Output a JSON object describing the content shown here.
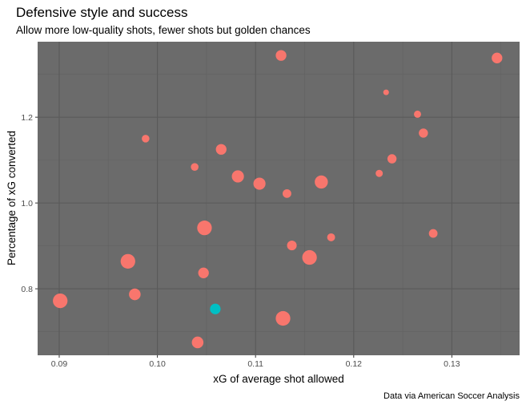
{
  "chart_data": {
    "type": "scatter",
    "title": "Defensive style and success",
    "subtitle": "Allow more low-quality shots, fewer shots but golden chances",
    "xlabel": "xG of average shot allowed",
    "ylabel": "Percentage of xG converted",
    "caption": "Data via American Soccer Analysis",
    "xlim": [
      0.0878,
      0.1369
    ],
    "ylim": [
      0.645,
      1.376
    ],
    "xticks": [
      0.09,
      0.1,
      0.11,
      0.12,
      0.13
    ],
    "xtick_labels": [
      "0.09",
      "0.10",
      "0.11",
      "0.12",
      "0.13"
    ],
    "yticks": [
      0.8,
      1.0,
      1.2
    ],
    "ytick_labels": [
      "0.8",
      "1.0",
      "1.2"
    ],
    "grid": true,
    "colors": {
      "default": "#F8766D",
      "highlight": "#00BFC4",
      "panel": "#6b6b6b"
    },
    "points": [
      {
        "x": 0.1126,
        "y": 1.344,
        "size": 3,
        "group": "default"
      },
      {
        "x": 0.1346,
        "y": 1.338,
        "size": 3,
        "group": "default"
      },
      {
        "x": 0.1233,
        "y": 1.258,
        "size": 1,
        "group": "default"
      },
      {
        "x": 0.1265,
        "y": 1.207,
        "size": 1.6,
        "group": "default"
      },
      {
        "x": 0.1271,
        "y": 1.163,
        "size": 2.4,
        "group": "default"
      },
      {
        "x": 0.0988,
        "y": 1.15,
        "size": 1.8,
        "group": "default"
      },
      {
        "x": 0.1065,
        "y": 1.125,
        "size": 3,
        "group": "default"
      },
      {
        "x": 0.1239,
        "y": 1.103,
        "size": 2.4,
        "group": "default"
      },
      {
        "x": 0.1038,
        "y": 1.084,
        "size": 1.8,
        "group": "default"
      },
      {
        "x": 0.1226,
        "y": 1.069,
        "size": 1.6,
        "group": "default"
      },
      {
        "x": 0.1082,
        "y": 1.062,
        "size": 3.6,
        "group": "default"
      },
      {
        "x": 0.1104,
        "y": 1.045,
        "size": 3.6,
        "group": "default"
      },
      {
        "x": 0.1167,
        "y": 1.049,
        "size": 4,
        "group": "default"
      },
      {
        "x": 0.1132,
        "y": 1.022,
        "size": 2.2,
        "group": "default"
      },
      {
        "x": 0.1048,
        "y": 0.942,
        "size": 4.6,
        "group": "default"
      },
      {
        "x": 0.1137,
        "y": 0.901,
        "size": 2.6,
        "group": "default"
      },
      {
        "x": 0.1177,
        "y": 0.92,
        "size": 1.9,
        "group": "default"
      },
      {
        "x": 0.1281,
        "y": 0.929,
        "size": 2.2,
        "group": "default"
      },
      {
        "x": 0.1155,
        "y": 0.873,
        "size": 4.6,
        "group": "default"
      },
      {
        "x": 0.097,
        "y": 0.864,
        "size": 4.6,
        "group": "default"
      },
      {
        "x": 0.1047,
        "y": 0.837,
        "size": 3,
        "group": "default"
      },
      {
        "x": 0.0977,
        "y": 0.787,
        "size": 3.4,
        "group": "default"
      },
      {
        "x": 0.0901,
        "y": 0.772,
        "size": 4.6,
        "group": "default"
      },
      {
        "x": 0.1059,
        "y": 0.753,
        "size": 3,
        "group": "highlight"
      },
      {
        "x": 0.1128,
        "y": 0.731,
        "size": 4.6,
        "group": "default"
      },
      {
        "x": 0.1041,
        "y": 0.675,
        "size": 3.4,
        "group": "default"
      }
    ]
  }
}
